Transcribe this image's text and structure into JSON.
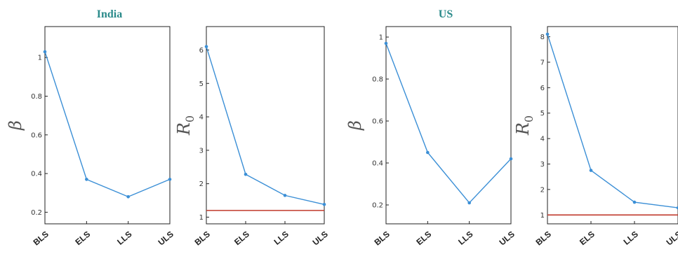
{
  "groups": [
    {
      "title": "India"
    },
    {
      "title": "US"
    }
  ],
  "chart_data": [
    {
      "type": "line",
      "group": "India",
      "ylabel": "β",
      "ylabel_sub": "",
      "categories": [
        "BLS",
        "ELS",
        "LLS",
        "ULS"
      ],
      "values": [
        1.03,
        0.37,
        0.28,
        0.37
      ],
      "ylim": [
        0.14,
        1.16
      ],
      "yticks": [
        0.2,
        0.4,
        0.6,
        0.8,
        1
      ],
      "ytick_labels": [
        "0.2",
        "0.4",
        "0.6",
        "0.8",
        "1"
      ],
      "reference_line": null,
      "grid": false
    },
    {
      "type": "line",
      "group": "India",
      "ylabel": "R",
      "ylabel_sub": "0",
      "categories": [
        "BLS",
        "ELS",
        "LLS",
        "ULS"
      ],
      "values": [
        6.1,
        2.28,
        1.65,
        1.38
      ],
      "ylim": [
        0.8,
        6.7
      ],
      "yticks": [
        1,
        2,
        3,
        4,
        5,
        6
      ],
      "ytick_labels": [
        "1",
        "2",
        "3",
        "4",
        "5",
        "6"
      ],
      "reference_line": {
        "y": 1.2,
        "color": "#c0392b"
      },
      "grid": false
    },
    {
      "type": "line",
      "group": "US",
      "ylabel": "β",
      "ylabel_sub": "",
      "categories": [
        "BLS",
        "ELS",
        "LLS",
        "ULS"
      ],
      "values": [
        0.97,
        0.45,
        0.21,
        0.42
      ],
      "ylim": [
        0.11,
        1.05
      ],
      "yticks": [
        0.2,
        0.4,
        0.6,
        0.8,
        1
      ],
      "ytick_labels": [
        "0.2",
        "0.4",
        "0.6",
        "0.8",
        "1"
      ],
      "reference_line": null,
      "grid": false
    },
    {
      "type": "line",
      "group": "US",
      "ylabel": "R",
      "ylabel_sub": "0",
      "categories": [
        "BLS",
        "ELS",
        "LLS",
        "ULS"
      ],
      "values": [
        8.1,
        2.75,
        1.5,
        1.28
      ],
      "ylim": [
        0.65,
        8.4
      ],
      "yticks": [
        1,
        2,
        3,
        4,
        5,
        6,
        7,
        8
      ],
      "ytick_labels": [
        "1",
        "2",
        "3",
        "4",
        "5",
        "6",
        "7",
        "8"
      ],
      "reference_line": {
        "y": 1.0,
        "color": "#c0392b"
      },
      "grid": false
    }
  ]
}
